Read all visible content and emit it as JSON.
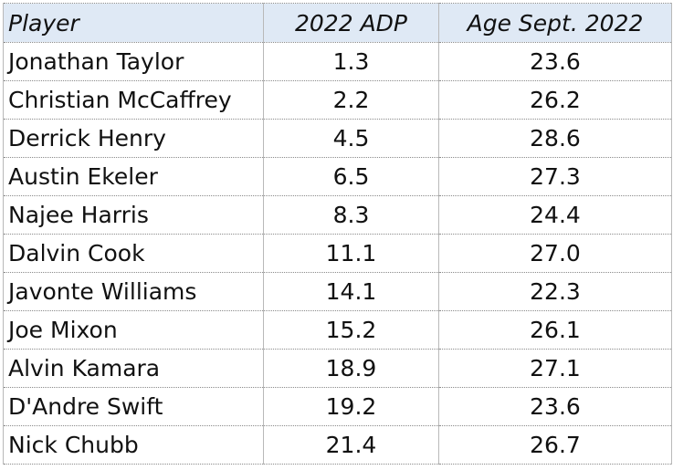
{
  "chart_data": {
    "type": "table",
    "columns": [
      "Player",
      "2022 ADP",
      "Age Sept. 2022"
    ],
    "rows": [
      [
        "Jonathan Taylor",
        "1.3",
        "23.6"
      ],
      [
        "Christian McCaffrey",
        "2.2",
        "26.2"
      ],
      [
        "Derrick Henry",
        "4.5",
        "28.6"
      ],
      [
        "Austin Ekeler",
        "6.5",
        "27.3"
      ],
      [
        "Najee Harris",
        "8.3",
        "24.4"
      ],
      [
        "Dalvin Cook",
        "11.1",
        "27.0"
      ],
      [
        "Javonte Williams",
        "14.1",
        "22.3"
      ],
      [
        "Joe Mixon",
        "15.2",
        "26.1"
      ],
      [
        "Alvin Kamara",
        "18.9",
        "27.1"
      ],
      [
        "D'Andre Swift",
        "19.2",
        "23.6"
      ],
      [
        "Nick Chubb",
        "21.4",
        "26.7"
      ]
    ],
    "header_background": "#dfe9f5"
  }
}
